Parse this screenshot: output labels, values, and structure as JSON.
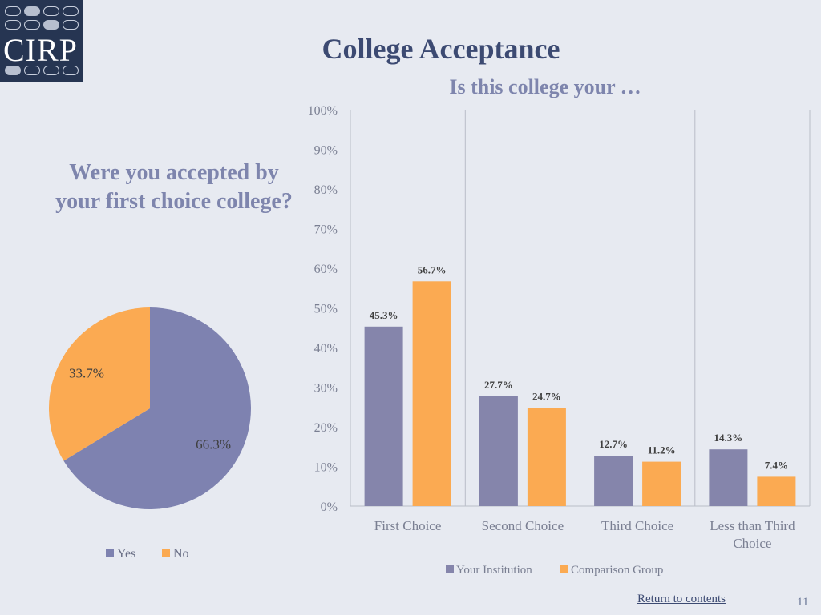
{
  "logo": {
    "text": "CIRP"
  },
  "title": "College Acceptance",
  "colors": {
    "your_institution": "#8585ab",
    "comparison": "#fbaa52",
    "pie_yes": "#7e82b0",
    "pie_no": "#fbaa52",
    "background": "#e7eaf1"
  },
  "chart_data": [
    {
      "type": "pie",
      "title": "Were you accepted by your first choice college?",
      "labels": [
        "Yes",
        "No"
      ],
      "values": [
        66.3,
        33.7
      ],
      "value_labels": [
        "66.3%",
        "33.7%"
      ],
      "legend_position": "bottom"
    },
    {
      "type": "bar",
      "title": "Is this college your …",
      "categories": [
        "First Choice",
        "Second Choice",
        "Third Choice",
        "Less than Third Choice"
      ],
      "series": [
        {
          "name": "Your Institution",
          "values": [
            45.3,
            27.7,
            12.7,
            14.3
          ],
          "labels": [
            "45.3%",
            "27.7%",
            "12.7%",
            "14.3%"
          ]
        },
        {
          "name": "Comparison Group",
          "values": [
            56.7,
            24.7,
            11.2,
            7.4
          ],
          "labels": [
            "56.7%",
            "24.7%",
            "11.2%",
            "7.4%"
          ]
        }
      ],
      "y_ticks": [
        "0%",
        "10%",
        "20%",
        "30%",
        "40%",
        "50%",
        "60%",
        "70%",
        "80%",
        "90%",
        "100%"
      ],
      "ylim": [
        0,
        100
      ],
      "legend_position": "bottom"
    }
  ],
  "footer": {
    "link": "Return to contents",
    "page": "11"
  }
}
